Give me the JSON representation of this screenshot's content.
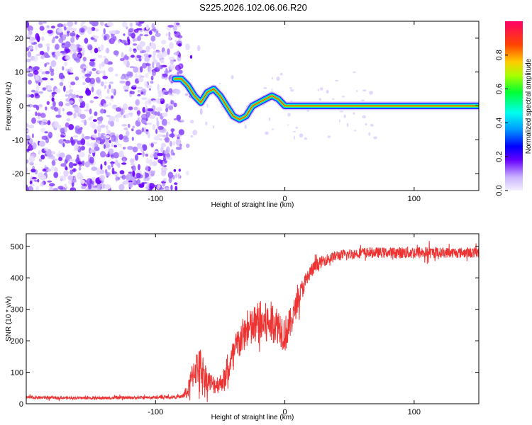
{
  "title": "S225.2026.102.06.06.R20",
  "chart_data": [
    {
      "type": "heatmap",
      "name": "spectrogram",
      "xlabel": "Height of straight line (km)",
      "ylabel": "Frequency (Hz)",
      "xlim": [
        -200,
        150
      ],
      "ylim": [
        -25,
        25
      ],
      "xticks": [
        "-100",
        "0",
        "100"
      ],
      "xtick_values": [
        -100,
        0,
        100
      ],
      "yticks": [
        "20",
        "10",
        "0",
        "-10",
        "-20"
      ],
      "ytick_values": [
        20,
        10,
        0,
        -10,
        -20
      ],
      "noise_region_x": [
        -200,
        -80
      ],
      "signal_start_x": 0,
      "trace": [
        {
          "x": -85,
          "y": 8
        },
        {
          "x": -80,
          "y": 8
        },
        {
          "x": -75,
          "y": 6
        },
        {
          "x": -70,
          "y": 3
        },
        {
          "x": -65,
          "y": 1
        },
        {
          "x": -60,
          "y": 4
        },
        {
          "x": -55,
          "y": 5
        },
        {
          "x": -50,
          "y": 3
        },
        {
          "x": -45,
          "y": 0
        },
        {
          "x": -40,
          "y": -3
        },
        {
          "x": -35,
          "y": -4
        },
        {
          "x": -30,
          "y": -3
        },
        {
          "x": -25,
          "y": 0
        },
        {
          "x": -20,
          "y": 1
        },
        {
          "x": -15,
          "y": 2
        },
        {
          "x": -10,
          "y": 3
        },
        {
          "x": -5,
          "y": 2
        },
        {
          "x": 0,
          "y": 0
        },
        {
          "x": 150,
          "y": 0
        }
      ],
      "colorbar": {
        "label": "Normalized spectral amplitude",
        "range": [
          0,
          1
        ],
        "ticks": [
          "0.0",
          "0.2",
          "0.4",
          "0.6",
          "0.8"
        ],
        "tick_values": [
          0.0,
          0.2,
          0.4,
          0.6,
          0.8
        ],
        "colormap": "rainbow"
      }
    },
    {
      "type": "line",
      "name": "snr",
      "xlabel": "Height of straight line (km)",
      "ylabel": "SNR (10 * v/v)",
      "xlim": [
        -200,
        150
      ],
      "ylim": [
        0,
        540
      ],
      "xticks": [
        "-100",
        "0",
        "100"
      ],
      "xtick_values": [
        -100,
        0,
        100
      ],
      "yticks": [
        "0",
        "100",
        "200",
        "300",
        "400",
        "500"
      ],
      "ytick_values": [
        0,
        100,
        200,
        300,
        400,
        500
      ],
      "color": "#ee3333",
      "series": [
        {
          "name": "SNR",
          "x": [
            -200,
            -150,
            -100,
            -80,
            -75,
            -70,
            -65,
            -60,
            -55,
            -50,
            -45,
            -40,
            -35,
            -30,
            -25,
            -20,
            -15,
            -10,
            -5,
            0,
            5,
            10,
            15,
            20,
            25,
            30,
            40,
            60,
            80,
            100,
            120,
            150
          ],
          "y": [
            20,
            18,
            20,
            22,
            40,
            110,
            120,
            75,
            60,
            65,
            90,
            150,
            200,
            230,
            240,
            260,
            250,
            260,
            250,
            220,
            260,
            330,
            380,
            420,
            440,
            455,
            470,
            480,
            480,
            480,
            480,
            480
          ],
          "noise": [
            8,
            8,
            8,
            8,
            40,
            90,
            100,
            60,
            50,
            50,
            60,
            90,
            100,
            90,
            110,
            120,
            120,
            110,
            100,
            100,
            80,
            60,
            50,
            40,
            35,
            30,
            28,
            28,
            28,
            35,
            28,
            28
          ]
        }
      ]
    }
  ]
}
